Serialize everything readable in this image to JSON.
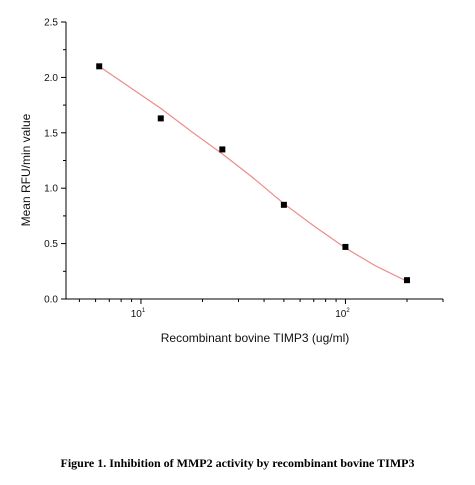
{
  "chart_data": {
    "type": "scatter",
    "title": "",
    "xlabel": "Recombinant bovine TIMP3 (ug/ml)",
    "ylabel": "Mean RFU/min value",
    "x_scale": "log",
    "xlim": [
      4.3,
      300
    ],
    "ylim": [
      0,
      2.5
    ],
    "x_ticks": [
      {
        "value": 10,
        "base": "10",
        "exp": "1"
      },
      {
        "value": 100,
        "base": "10",
        "exp": "2"
      }
    ],
    "y_ticks": [
      {
        "value": 0.0,
        "label": "0.0"
      },
      {
        "value": 0.5,
        "label": "0.5"
      },
      {
        "value": 1.0,
        "label": "1.0"
      },
      {
        "value": 1.5,
        "label": "1.5"
      },
      {
        "value": 2.0,
        "label": "2.0"
      },
      {
        "value": 2.5,
        "label": "2.5"
      }
    ],
    "points": [
      {
        "x": 6.25,
        "y": 2.1
      },
      {
        "x": 12.5,
        "y": 1.63
      },
      {
        "x": 25,
        "y": 1.35
      },
      {
        "x": 50,
        "y": 0.85
      },
      {
        "x": 100,
        "y": 0.47
      },
      {
        "x": 200,
        "y": 0.17
      }
    ],
    "fit_curve": [
      {
        "x": 6.25,
        "y": 2.1
      },
      {
        "x": 9,
        "y": 1.9
      },
      {
        "x": 12.5,
        "y": 1.72
      },
      {
        "x": 18,
        "y": 1.5
      },
      {
        "x": 25,
        "y": 1.31
      },
      {
        "x": 35,
        "y": 1.1
      },
      {
        "x": 50,
        "y": 0.86
      },
      {
        "x": 70,
        "y": 0.66
      },
      {
        "x": 100,
        "y": 0.46
      },
      {
        "x": 140,
        "y": 0.3
      },
      {
        "x": 200,
        "y": 0.16
      }
    ],
    "marker_color": "#000000",
    "fit_color": "#ef8a8a",
    "grid": false,
    "legend": "none"
  },
  "caption": {
    "text": "Figure 1. Inhibition of MMP2 activity by recombinant bovine TIMP3"
  }
}
